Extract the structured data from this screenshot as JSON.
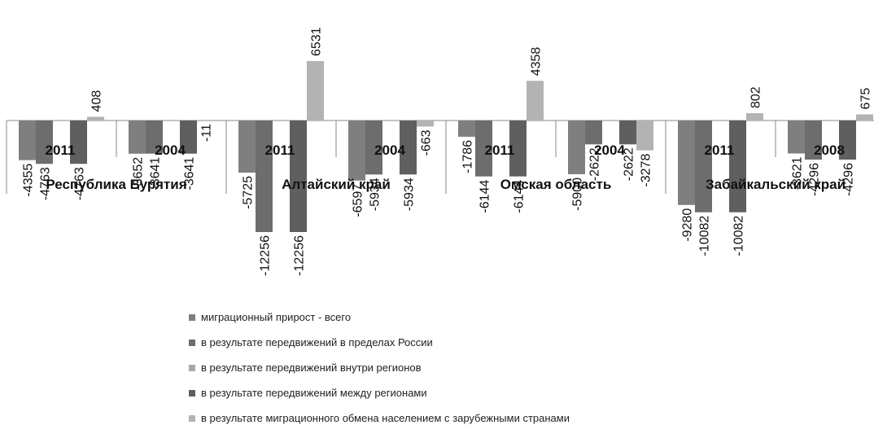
{
  "chart_data": {
    "type": "bar",
    "groups": [
      {
        "region": "Республика Бурятия",
        "periods": [
          {
            "year": "2011",
            "values": [
              -4355,
              -4763,
              null,
              -4763,
              408
            ]
          },
          {
            "year": "2004",
            "values": [
              -3652,
              -3641,
              null,
              -3641,
              -11
            ]
          }
        ]
      },
      {
        "region": "Алтайский край",
        "periods": [
          {
            "year": "2011",
            "values": [
              -5725,
              -12256,
              null,
              -12256,
              6531
            ]
          },
          {
            "year": "2004",
            "values": [
              -6597,
              -5934,
              null,
              -5934,
              -663
            ]
          }
        ]
      },
      {
        "region": "Омская область",
        "periods": [
          {
            "year": "2011",
            "values": [
              -1786,
              -6144,
              null,
              -6144,
              4358
            ]
          },
          {
            "year": "2004",
            "values": [
              -5900,
              -2622,
              null,
              -2622,
              -3278
            ]
          }
        ]
      },
      {
        "region": "Забайкальский край",
        "periods": [
          {
            "year": "2011",
            "values": [
              -9280,
              -10082,
              null,
              -10082,
              802
            ]
          },
          {
            "year": "2008",
            "values": [
              -3621,
              -4296,
              null,
              -4296,
              675
            ]
          }
        ]
      }
    ],
    "series": [
      {
        "name": "миграционный прирост - всего",
        "color": "#7f7f7f"
      },
      {
        "name": "в результате передвижений в пределах России",
        "color": "#6d6d6d"
      },
      {
        "name": "в результате передвижений внутри регионов",
        "color": "#a9a9a9"
      },
      {
        "name": "в результате передвижений между регионами",
        "color": "#5f5f5f"
      },
      {
        "name": "в результате миграционного обмена населением с зарубежными странами",
        "color": "#b3b3b3"
      }
    ],
    "grid": false,
    "legend_position": "bottom"
  }
}
